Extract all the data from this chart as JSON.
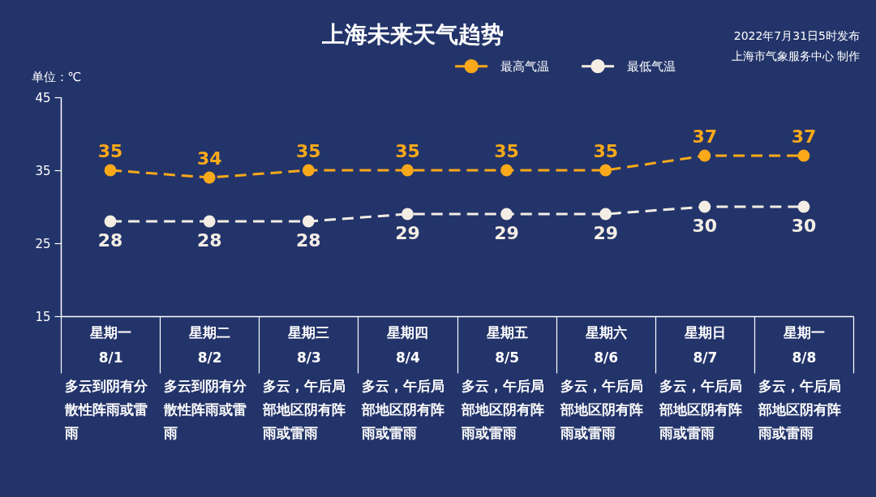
{
  "chart_data": {
    "type": "line",
    "title": "上海未来天气趋势",
    "ylabel": "单位：℃",
    "categories": [
      "星期一\n8/1",
      "星期二\n8/2",
      "星期三\n8/3",
      "星期四\n8/4",
      "星期五\n8/5",
      "星期六\n8/6",
      "星期日\n8/7",
      "星期一\n8/8"
    ],
    "series": [
      {
        "name": "最高气温",
        "color": "#f9a91a",
        "values": [
          35,
          34,
          35,
          35,
          35,
          35,
          37,
          37
        ]
      },
      {
        "name": "最低气温",
        "color": "#f3ede4",
        "values": [
          28,
          28,
          28,
          29,
          29,
          29,
          30,
          30
        ]
      }
    ],
    "ylim": [
      15,
      45
    ],
    "yticks": [
      15,
      25,
      35,
      45
    ],
    "legend": "top",
    "marker": "circle",
    "line_style": "dashed",
    "data_labels": true,
    "annotations": [
      "2022年7月31日5时发布",
      "上海市气象服务中心 制作",
      "多云到阴有分散性阵雨或雷雨",
      "多云到阴有分散性阵雨或雷雨",
      "多云，午后局部地区阴有阵雨或雷雨",
      "多云，午后局部地区阴有阵雨或雷雨",
      "多云，午后局部地区阴有阵雨或雷雨",
      "多云，午后局部地区阴有阵雨或雷雨",
      "多云，午后局部地区阴有阵雨或雷雨",
      "多云，午后局部地区阴有阵雨或雷雨"
    ]
  }
}
